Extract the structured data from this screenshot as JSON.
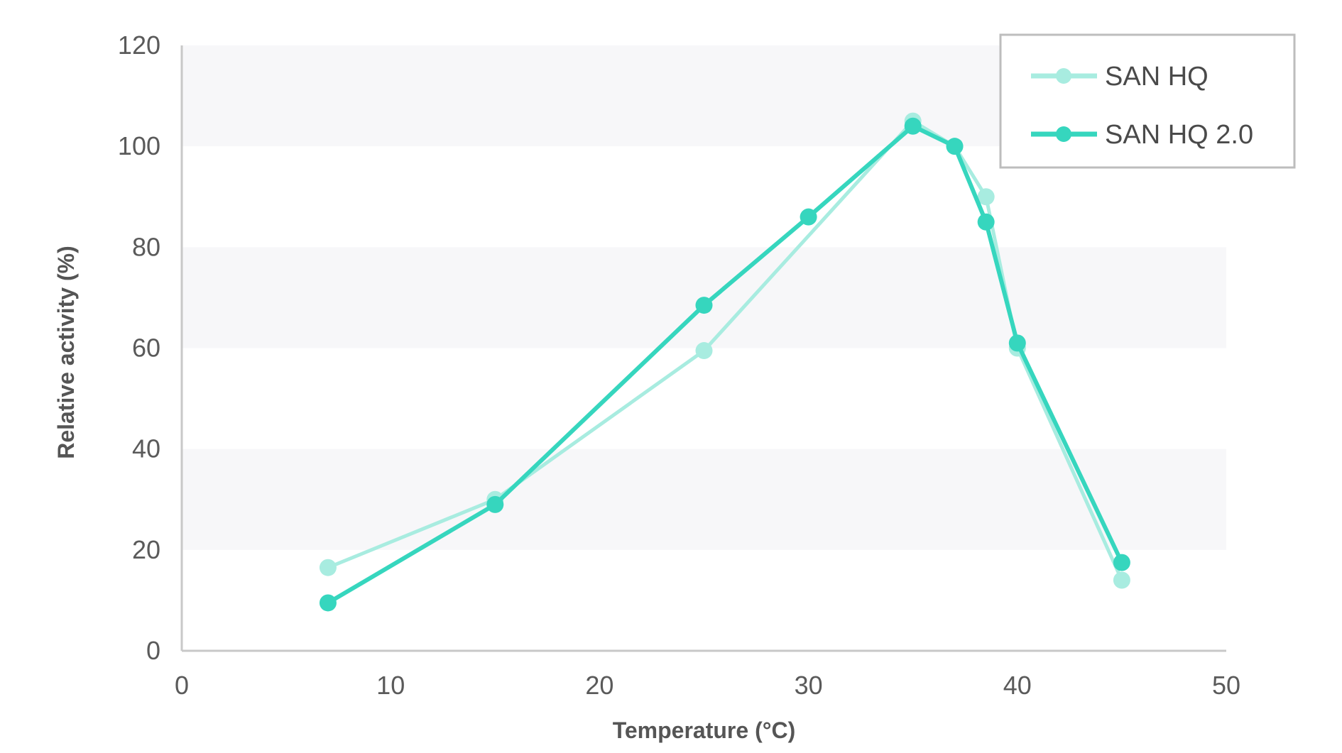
{
  "chart_data": {
    "type": "line",
    "xlabel": "Temperature (°C)",
    "ylabel": "Relative activity (%)",
    "xlim": [
      0,
      50
    ],
    "ylim": [
      0,
      120
    ],
    "xticks": [
      0,
      10,
      20,
      30,
      40,
      50
    ],
    "yticks": [
      0,
      20,
      40,
      60,
      80,
      100,
      120
    ],
    "grid": "alternating horizontal bands",
    "legend_position": "top-right",
    "series": [
      {
        "name": "SAN HQ",
        "color": "#a8ece0",
        "points": [
          [
            7,
            16.5
          ],
          [
            15,
            30
          ],
          [
            25,
            59.5
          ],
          [
            35,
            105
          ],
          [
            37,
            100
          ],
          [
            38.5,
            90
          ],
          [
            40,
            60
          ],
          [
            45,
            14
          ]
        ]
      },
      {
        "name": "SAN HQ 2.0",
        "color": "#36d6be",
        "points": [
          [
            7,
            9.5
          ],
          [
            15,
            29
          ],
          [
            25,
            68.5
          ],
          [
            30,
            86
          ],
          [
            35,
            104
          ],
          [
            37,
            100
          ],
          [
            38.5,
            85
          ],
          [
            40,
            61
          ],
          [
            45,
            17.5
          ]
        ]
      }
    ]
  }
}
